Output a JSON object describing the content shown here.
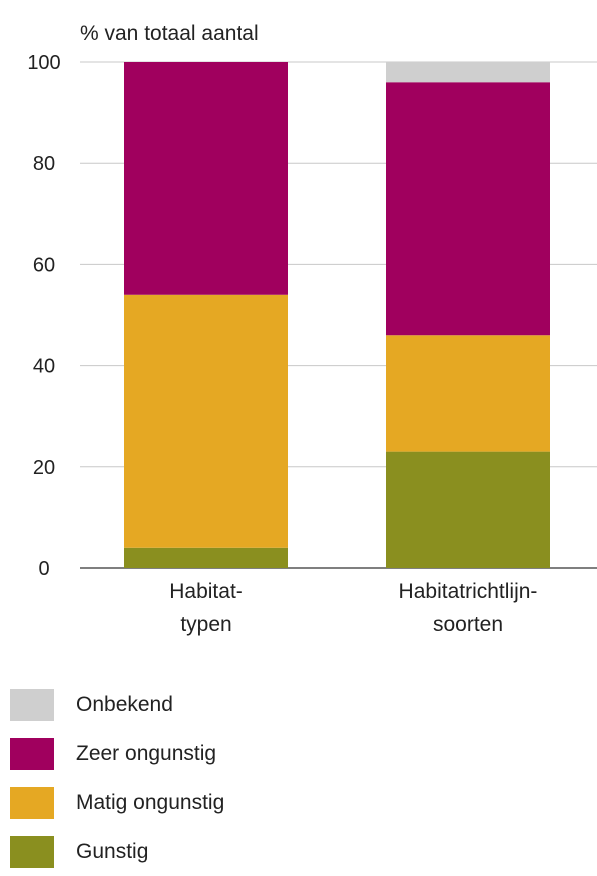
{
  "chart_data": {
    "type": "bar",
    "stacked": true,
    "title": "",
    "ylabel": "% van totaal aantal",
    "xlabel": "",
    "ylim": [
      0,
      100
    ],
    "yticks": [
      0,
      20,
      40,
      60,
      80,
      100
    ],
    "grid": true,
    "categories": [
      [
        "Habitat-",
        "typen"
      ],
      [
        "Habitatrichtlijn-",
        "soorten"
      ]
    ],
    "series": [
      {
        "name": "Gunstig",
        "color": "#8a8f1f",
        "values": [
          4,
          23
        ]
      },
      {
        "name": "Matig ongunstig",
        "color": "#e5a823",
        "values": [
          50,
          23
        ]
      },
      {
        "name": "Zeer ongunstig",
        "color": "#a0005e",
        "values": [
          46,
          50
        ]
      },
      {
        "name": "Onbekend",
        "color": "#cfcfcf",
        "values": [
          0,
          4
        ]
      }
    ],
    "legend_position": "bottom"
  }
}
